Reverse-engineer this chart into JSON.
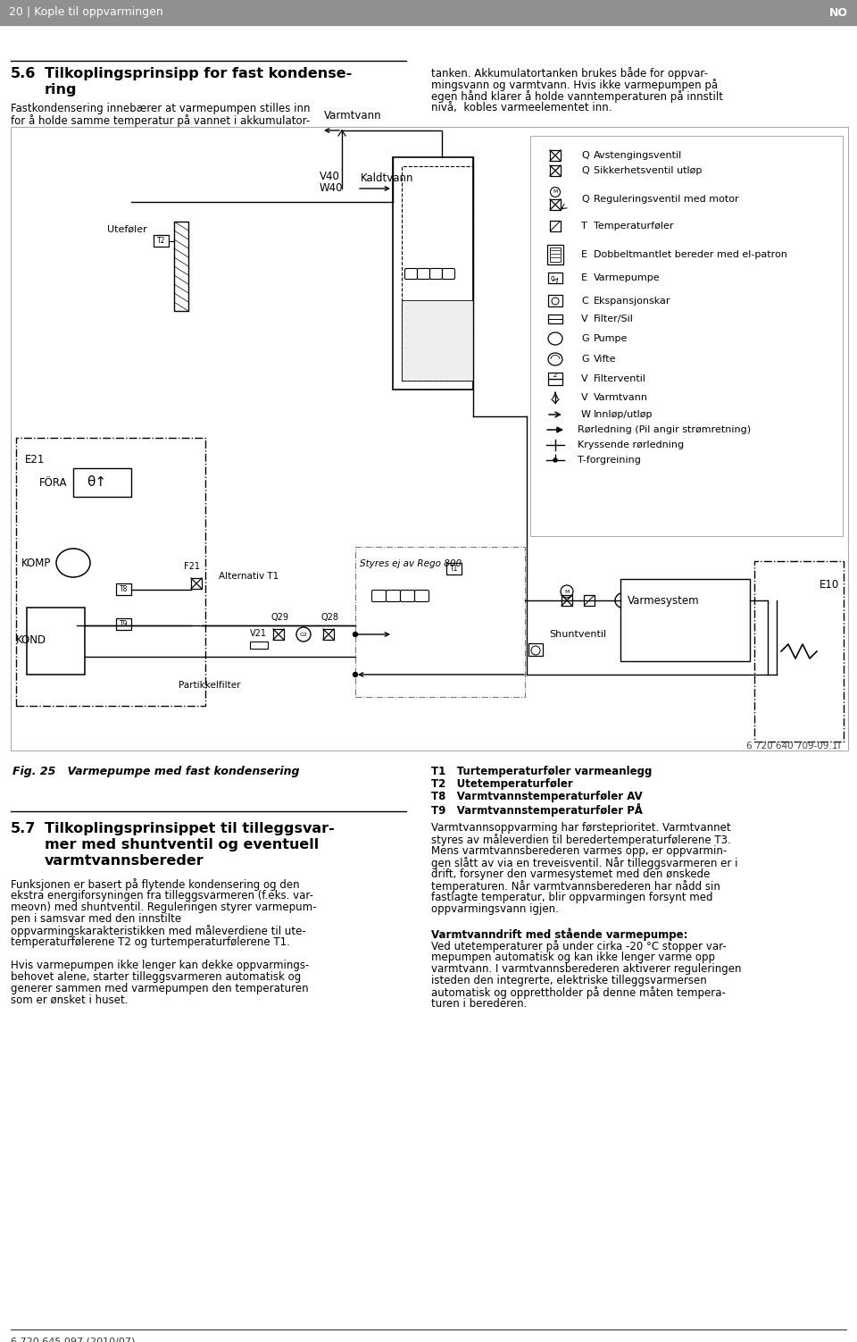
{
  "page_header_left": "20 | Kople til oppvarmingen",
  "page_header_right": "NO",
  "legend_items": [
    {
      "code": "Q",
      "text": "Avstengingsventil"
    },
    {
      "code": "Q",
      "text": "Sikkerhetsventil utløp"
    },
    {
      "code": "Q",
      "text": "Reguleringsventil med motor"
    },
    {
      "code": "T",
      "text": "Temperaturføler"
    },
    {
      "code": "E",
      "text": "Dobbeltmantlet bereder med el-patron"
    },
    {
      "code": "E",
      "text": "Varmepumpe"
    },
    {
      "code": "C",
      "text": "Ekspansjonskar"
    },
    {
      "code": "V",
      "text": "Filter/Sil"
    },
    {
      "code": "G",
      "text": "Pumpe"
    },
    {
      "code": "G",
      "text": "Vifte"
    },
    {
      "code": "V",
      "text": "Filterventil"
    },
    {
      "code": "V",
      "text": "Varmtvann"
    },
    {
      "code": "W",
      "text": "Innløp/utløp"
    },
    {
      "code": "",
      "text": "Rørledning (Pil angir strømretning)"
    },
    {
      "code": "",
      "text": "Kryssende rørledning"
    },
    {
      "code": "",
      "text": "T-forgreining"
    }
  ],
  "footer_left": "6 720 645 097 (2010/07)",
  "footer_fig": "6 720 640 709-09.1I",
  "fig_caption": "Fig. 25   Varmepumpe med fast kondensering",
  "t1_caption": "T1   Turtemperaturføler varmeanlegg",
  "t2_caption": "T2   Utetemperaturføler",
  "t8_caption": "T8   Varmtvannstemperaturføler AV",
  "t9_caption": "T9   Varmtvannstemperaturføler PÅ"
}
